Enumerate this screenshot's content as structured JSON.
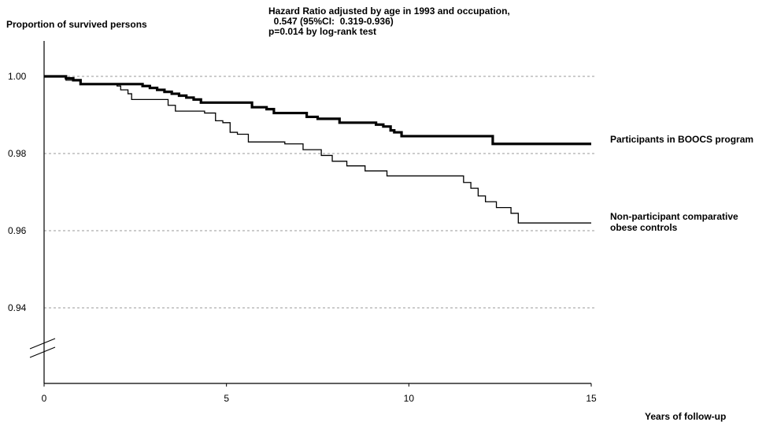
{
  "chart_data": {
    "type": "line",
    "title": "",
    "ylabel": "Proportion of survived persons",
    "xlabel": "Years of follow-up",
    "annotation_lines": [
      "Hazard Ratio adjusted by age in 1993 and occupation,",
      "  0.547 (95%CI:  0.319-0.936)",
      "p=0.014 by log-rank test"
    ],
    "xlim": [
      0,
      15
    ],
    "ylim": [
      0.92,
      1.01
    ],
    "x_ticks": [
      0,
      5,
      10,
      15
    ],
    "x_tick_labels": [
      "0",
      "5",
      "10",
      "15"
    ],
    "y_ticks": [
      1.0,
      0.98,
      0.96,
      0.94
    ],
    "y_tick_labels": [
      "1.00",
      "0.98",
      "0.96",
      "0.94"
    ],
    "grid": "horizontal dashed",
    "axis_break": true,
    "series": [
      {
        "name": "Participants in BOOCS program",
        "label_lines": [
          "Participants in BOOCS program"
        ],
        "color": "#000000",
        "style": "thick",
        "x": [
          0,
          0.5,
          0.6,
          0.8,
          1.0,
          2.5,
          2.7,
          2.9,
          3.1,
          3.3,
          3.5,
          3.7,
          3.9,
          4.1,
          4.3,
          5.3,
          5.7,
          6.1,
          6.3,
          6.9,
          7.2,
          7.5,
          7.8,
          8.1,
          8.4,
          9.0,
          9.1,
          9.3,
          9.5,
          9.6,
          9.8,
          10.1,
          12.2,
          12.3,
          15.0
        ],
        "y": [
          1.0,
          1.0,
          0.9995,
          0.999,
          0.998,
          0.998,
          0.9975,
          0.997,
          0.9965,
          0.996,
          0.9955,
          0.995,
          0.9945,
          0.994,
          0.9932,
          0.9932,
          0.992,
          0.9915,
          0.9905,
          0.9905,
          0.9895,
          0.989,
          0.989,
          0.988,
          0.988,
          0.988,
          0.9875,
          0.987,
          0.986,
          0.9855,
          0.9845,
          0.9845,
          0.9845,
          0.9825,
          0.9825
        ]
      },
      {
        "name": "Non-participant comparative obese controls",
        "label_lines": [
          "Non-participant comparative",
          "obese controls"
        ],
        "color": "#000000",
        "style": "thin",
        "x": [
          0,
          0.4,
          0.6,
          1.0,
          2.0,
          2.1,
          2.3,
          2.4,
          3.3,
          3.4,
          3.6,
          4.4,
          4.7,
          4.9,
          5.1,
          5.3,
          5.6,
          6.6,
          7.1,
          7.6,
          7.9,
          8.3,
          8.8,
          9.4,
          11.2,
          11.5,
          11.7,
          11.9,
          12.1,
          12.4,
          12.8,
          13.0,
          15.0
        ],
        "y": [
          1.0,
          1.0,
          0.999,
          0.998,
          0.9975,
          0.9965,
          0.9955,
          0.994,
          0.994,
          0.9925,
          0.991,
          0.9905,
          0.9885,
          0.988,
          0.9855,
          0.985,
          0.983,
          0.9825,
          0.981,
          0.9795,
          0.978,
          0.9768,
          0.9755,
          0.9742,
          0.9742,
          0.9725,
          0.971,
          0.969,
          0.9675,
          0.966,
          0.9645,
          0.962,
          0.962
        ]
      }
    ]
  }
}
